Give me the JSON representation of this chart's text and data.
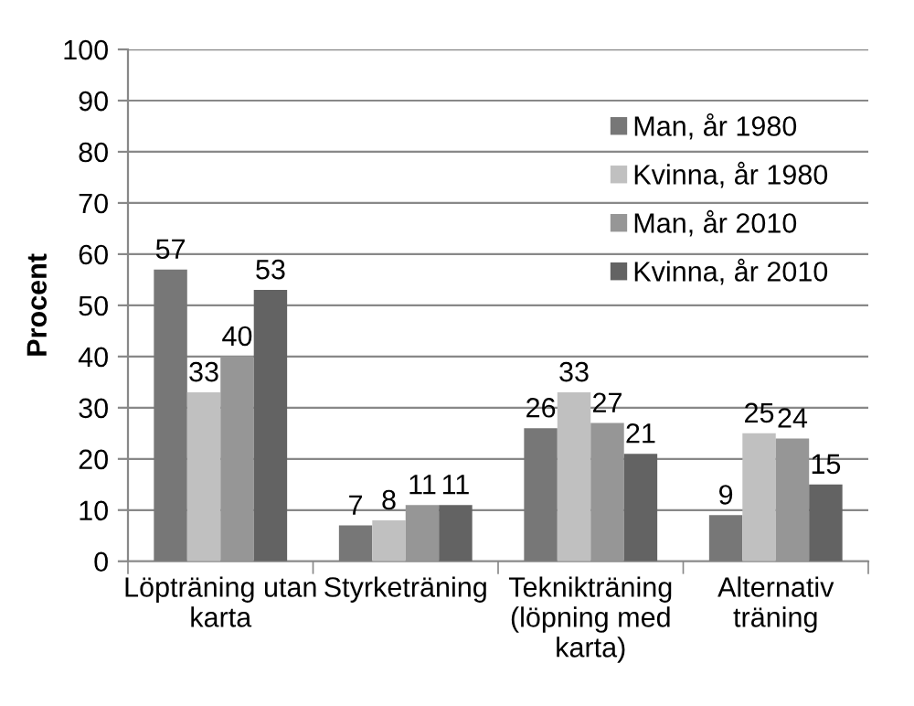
{
  "chart_data": {
    "type": "bar",
    "ylabel": "Procent",
    "categories": [
      "Löpträning utan\nkarta",
      "Styrketräning",
      "Teknikträning\n(löpning med\nkarta)",
      "Alternativ\nträning"
    ],
    "series": [
      {
        "name": "Man, år 1980",
        "color": "#777777",
        "values": [
          57,
          7,
          26,
          9
        ]
      },
      {
        "name": "Kvinna, år 1980",
        "color": "#c0c0c0",
        "values": [
          33,
          8,
          33,
          25
        ]
      },
      {
        "name": "Man, år 2010",
        "color": "#969696",
        "values": [
          40,
          11,
          27,
          24
        ]
      },
      {
        "name": "Kvinna, år 2010",
        "color": "#636363",
        "values": [
          53,
          11,
          21,
          15
        ]
      }
    ],
    "ylim": [
      0,
      100
    ],
    "yticks": [
      0,
      10,
      20,
      30,
      40,
      50,
      60,
      70,
      80,
      90,
      100
    ],
    "grid": "y",
    "legend": "top right",
    "data_labels": true
  }
}
